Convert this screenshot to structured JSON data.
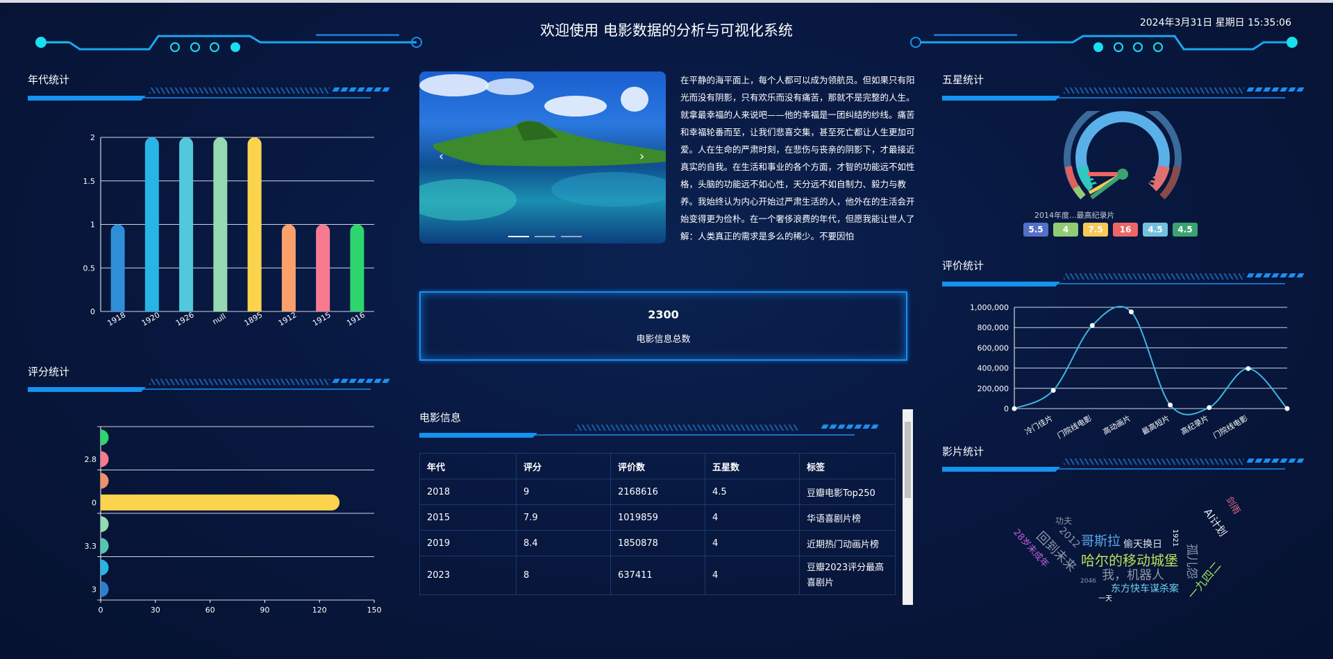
{
  "header": {
    "title": "欢迎使用 电影数据的分析与可视化系统",
    "datetime": "2024年3月31日 星期日 15:35:06"
  },
  "panels": {
    "decade": "年代统计",
    "score": "评分统计",
    "five_star": "五星统计",
    "rating": "评价统计",
    "film": "影片统计",
    "movie_info": "电影信息"
  },
  "carousel": {
    "prev": "‹",
    "next": "›",
    "slides": 3,
    "active": 0,
    "paragraph": "在平静的海平面上，每个人都可以成为领航员。但如果只有阳光而没有阴影，只有欢乐而没有痛苦，那就不是完整的人生。就拿最幸福的人来说吧——他的幸福是一团纠结的纱线。痛苦和幸福轮番而至，让我们悲喜交集，甚至死亡都让人生更加可爱。人在生命的严肃时刻，在悲伤与丧亲的阴影下，才最接近真实的自我。在生活和事业的各个方面，才智的功能远不如性格，头脑的功能远不如心性，天分远不如自制力、毅力与教养。我始终认为内心开始过严肃生活的人，他外在的生活会开始变得更为俭朴。在一个奢侈浪费的年代，但愿我能让世人了解：人类真正的需求是多么的稀少。不要因怕"
  },
  "stat": {
    "value": "2300",
    "label": "电影信息总数"
  },
  "table": {
    "headers": [
      "年代",
      "评分",
      "评价数",
      "五星数",
      "标签"
    ],
    "rows": [
      [
        "2018",
        "9",
        "2168616",
        "4.5",
        "豆瓣电影Top250"
      ],
      [
        "2015",
        "7.9",
        "1019859",
        "4",
        "华语喜剧片榜"
      ],
      [
        "2019",
        "8.4",
        "1850878",
        "4",
        "近期热门动画片榜"
      ],
      [
        "2023",
        "8",
        "637411",
        "4",
        "豆瓣2023评分最高喜剧片"
      ]
    ]
  },
  "gauge": {
    "legend_text": "2014年度...最高纪录片",
    "values": [
      {
        "value": "5.5",
        "color": "#5470c6"
      },
      {
        "value": "4",
        "color": "#91cc75"
      },
      {
        "value": "7.5",
        "color": "#fac858"
      },
      {
        "value": "16",
        "color": "#ee6666"
      },
      {
        "value": "4.5",
        "color": "#73c0de"
      },
      {
        "value": "4.5",
        "color": "#3ba272"
      }
    ]
  },
  "chart_data": [
    {
      "type": "bar",
      "title": "年代统计",
      "categories": [
        "1918",
        "1920",
        "1926",
        "null",
        "1895",
        "1912",
        "1915",
        "1916"
      ],
      "values": [
        1,
        2,
        2,
        2,
        2,
        1,
        1,
        1
      ],
      "colors": [
        "#2e8fd8",
        "#29b4e8",
        "#52c8dc",
        "#95d9b0",
        "#fcd34d",
        "#f9a06b",
        "#f87a90",
        "#2dd66e"
      ],
      "ylim": [
        0,
        2
      ],
      "yticks": [
        "0",
        "0.5",
        "1",
        "1.5",
        "2"
      ],
      "grid": true
    },
    {
      "type": "bar",
      "orientation": "horizontal",
      "title": "评分统计",
      "categories": [
        "3",
        "",
        "3.3",
        "",
        "0",
        "",
        "2.8",
        ""
      ],
      "values": [
        0.5,
        3,
        0.5,
        0.5,
        131,
        0.5,
        0.5,
        2
      ],
      "colors": [
        "#2e7fd0",
        "#29b4e8",
        "#52c8b0",
        "#95d9b0",
        "#fcd34d",
        "#f0906b",
        "#f87a90",
        "#2dd66e"
      ],
      "xlim": [
        0,
        150
      ],
      "xticks": [
        "0",
        "30",
        "60",
        "90",
        "120",
        "150"
      ],
      "grid": true
    },
    {
      "type": "line",
      "smooth": true,
      "title": "评价统计",
      "categories": [
        "",
        "冷门佳片",
        "门院线电影",
        "高动画片",
        "最高短片",
        "高纪录片",
        "门院线电影",
        ""
      ],
      "values": [
        0,
        180000,
        820000,
        955000,
        35000,
        10000,
        395000,
        0
      ],
      "ylim": [
        0,
        1000000
      ],
      "yticks": [
        "0",
        "200,000",
        "400,000",
        "600,000",
        "800,000",
        "1,000,000"
      ],
      "color": "#3fb6e0",
      "grid": true
    }
  ],
  "wordcloud": [
    {
      "text": "哈尔的移动城堡",
      "color": "#b8e05a"
    },
    {
      "text": "哥斯拉",
      "color": "#5aa8e8"
    },
    {
      "text": "偷天换日",
      "color": "#dde4ee"
    },
    {
      "text": "我，机器人",
      "color": "#8e97a8"
    },
    {
      "text": "东方快车谋杀案",
      "color": "#6fd0f0"
    },
    {
      "text": "一九四二",
      "color": "#9ee060"
    },
    {
      "text": "孤儿怨",
      "color": "#8e97a8"
    },
    {
      "text": "回到未来",
      "color": "#8e97a8"
    },
    {
      "text": "28岁未成年",
      "color": "#c060e0"
    },
    {
      "text": "2012",
      "color": "#8e97a8"
    },
    {
      "text": "功夫",
      "color": "#8e97a8"
    },
    {
      "text": "AI计划",
      "color": "#e8e8f0"
    },
    {
      "text": "剑雨",
      "color": "#e07090"
    },
    {
      "text": "2046",
      "color": "#8e97a8"
    },
    {
      "text": "一天",
      "color": "#ffffff"
    },
    {
      "text": "1921",
      "color": "#ffffff"
    }
  ]
}
